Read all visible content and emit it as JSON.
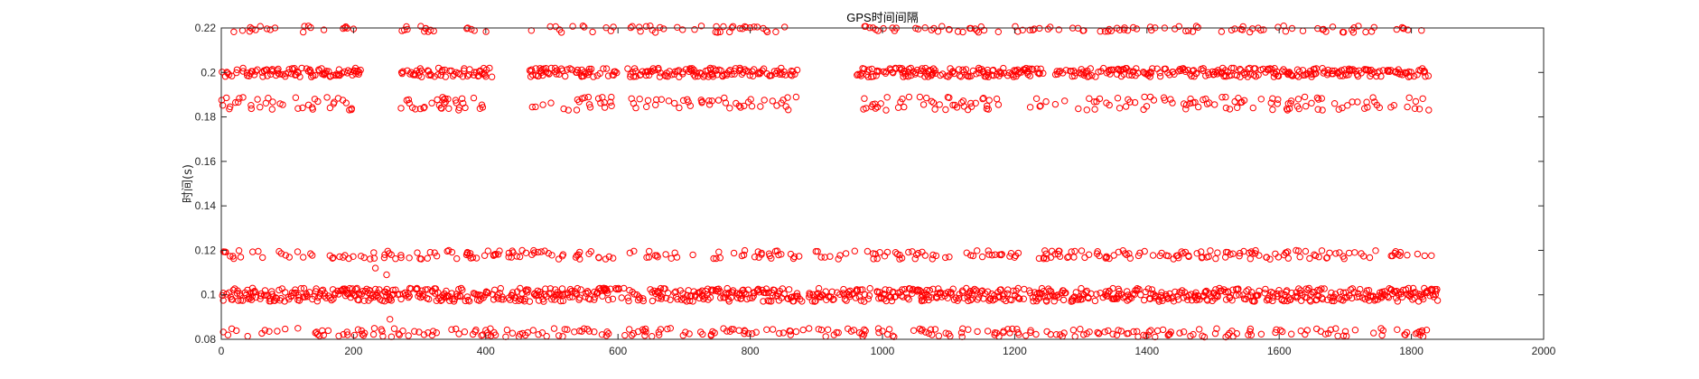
{
  "chart_data": {
    "type": "scatter",
    "title": "GPS时间间隔",
    "xlabel": "",
    "ylabel": "时间(s)",
    "xlim": [
      0,
      2000
    ],
    "ylim": [
      0.08,
      0.22
    ],
    "xticks": [
      0,
      200,
      400,
      600,
      800,
      1000,
      1200,
      1400,
      1600,
      1800,
      2000
    ],
    "yticks": [
      0.08,
      0.1,
      0.12,
      0.14,
      0.16,
      0.18,
      0.2,
      0.22
    ],
    "grid": false,
    "marker": "circle-open",
    "color": "#ff0000",
    "series": [
      {
        "description": "GPS time interval per sample index",
        "clusters": [
          {
            "level": 0.22,
            "spread": 0.002,
            "segments": [
              [
                0,
                200
              ],
              [
                270,
                400
              ],
              [
                465,
                600
              ],
              [
                610,
                870
              ],
              [
                960,
                1830
              ]
            ]
          },
          {
            "level": 0.2,
            "spread": 0.002,
            "segments": [
              [
                0,
                210
              ],
              [
                270,
                410
              ],
              [
                465,
                600
              ],
              [
                610,
                870
              ],
              [
                960,
                1830
              ]
            ]
          },
          {
            "level": 0.186,
            "spread": 0.003,
            "segments": [
              [
                0,
                200
              ],
              [
                270,
                400
              ],
              [
                465,
                600
              ],
              [
                610,
                870
              ],
              [
                960,
                1830
              ]
            ]
          },
          {
            "level": 0.118,
            "spread": 0.002,
            "segments": [
              [
                0,
                1830
              ]
            ]
          },
          {
            "level": 0.1,
            "spread": 0.003,
            "segments": [
              [
                0,
                1840
              ]
            ]
          },
          {
            "level": 0.083,
            "spread": 0.002,
            "segments": [
              [
                0,
                1830
              ]
            ]
          }
        ],
        "outliers": [
          [
            233,
            0.112
          ],
          [
            250,
            0.109
          ],
          [
            255,
            0.089
          ]
        ]
      }
    ]
  }
}
